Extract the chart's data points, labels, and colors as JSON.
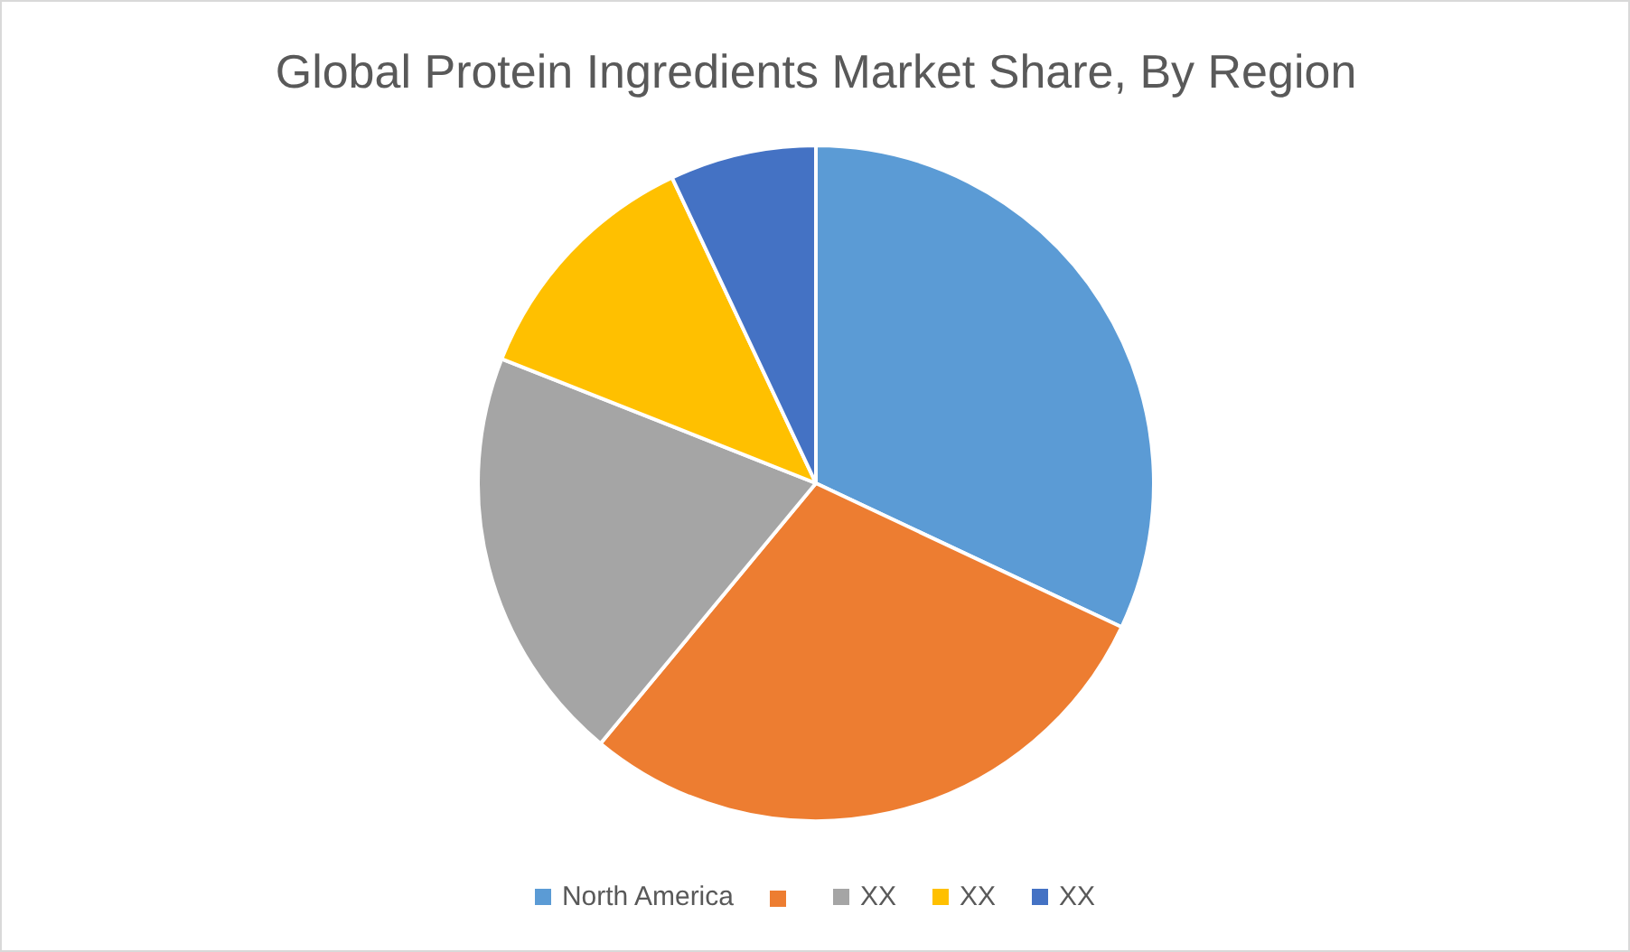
{
  "chart_data": {
    "type": "pie",
    "title": "Global Protein Ingredients Market Share, By Region",
    "categories": [
      "North America",
      null,
      "XX",
      "XX",
      "XX"
    ],
    "values": [
      32,
      29,
      20,
      12,
      7
    ],
    "colors": [
      "#5b9bd5",
      "#ed7d31",
      "#a5a5a5",
      "#ffc000",
      "#4472c4"
    ],
    "legend": "bottom"
  }
}
